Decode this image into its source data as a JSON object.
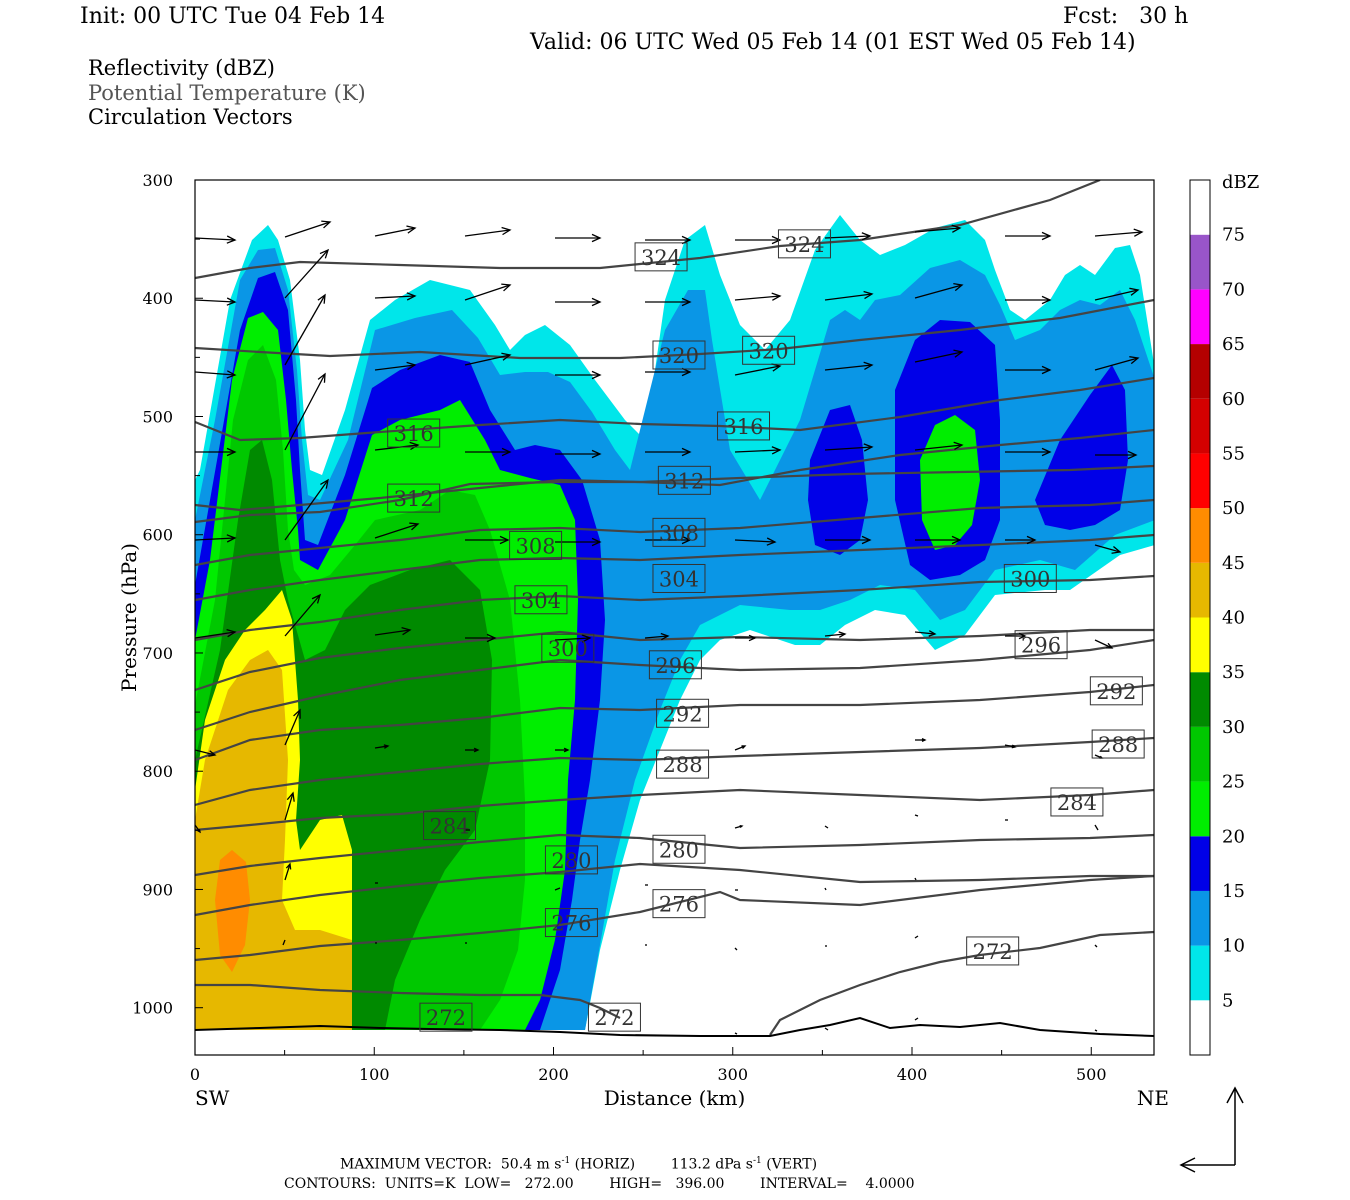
{
  "header": {
    "init": "Init: 00 UTC Tue 04 Feb 14",
    "fcst": "Fcst:   30 h",
    "valid": "Valid: 06 UTC Wed 05 Feb 14 (01 EST Wed 05 Feb 14)"
  },
  "titles": {
    "line1": "Reflectivity (dBZ)",
    "line2": "Potential Temperature (K)",
    "line3": "Circulation Vectors",
    "line2_color": "#555555"
  },
  "footer": {
    "max_vector_label": "MAXIMUM VECTOR:",
    "max_vector_horiz": "50.4 m s",
    "max_vector_horiz_sup": "-1",
    "max_vector_horiz_tail": "(HORIZ)",
    "max_vector_vert": "113.2 dPa s",
    "max_vector_vert_sup": "-1",
    "max_vector_vert_tail": "(VERT)",
    "contours": "CONTOURS:  UNITS=K  LOW=   272.00        HIGH=   396.00        INTERVAL=    4.0000"
  },
  "chart_data": {
    "type": "heatmap",
    "xlabel": "Distance (km)",
    "ylabel": "Pressure (hPa)",
    "xlim": [
      0,
      535
    ],
    "ylim": [
      300,
      1040
    ],
    "x_ticks": [
      0,
      100,
      200,
      300,
      400,
      500
    ],
    "y_ticks": [
      300,
      400,
      500,
      600,
      700,
      800,
      900,
      1000
    ],
    "x_end_labels": {
      "left": "SW",
      "right": "NE"
    },
    "colorbar": {
      "unit": "dBZ",
      "levels": [
        5,
        10,
        15,
        20,
        25,
        30,
        35,
        40,
        45,
        50,
        55,
        60,
        65,
        70,
        75
      ],
      "colors": [
        "#ffffff",
        "#00e6ea",
        "#0a96e6",
        "#0000e8",
        "#00ee00",
        "#00c800",
        "#008a00",
        "#ffff00",
        "#e6b800",
        "#ff8c00",
        "#ff0000",
        "#d40000",
        "#b40000",
        "#ff00ff",
        "#9955c9",
        "#ffffff"
      ]
    },
    "theta_contour_labels": [
      {
        "value": "324",
        "x": 260,
        "p": 365
      },
      {
        "value": "324",
        "x": 340,
        "p": 354
      },
      {
        "value": "320",
        "x": 270,
        "p": 448
      },
      {
        "value": "320",
        "x": 320,
        "p": 444
      },
      {
        "value": "316",
        "x": 122,
        "p": 514
      },
      {
        "value": "316",
        "x": 306,
        "p": 508
      },
      {
        "value": "312",
        "x": 122,
        "p": 569
      },
      {
        "value": "312",
        "x": 273,
        "p": 554
      },
      {
        "value": "308",
        "x": 190,
        "p": 609
      },
      {
        "value": "308",
        "x": 270,
        "p": 598
      },
      {
        "value": "304",
        "x": 193,
        "p": 655
      },
      {
        "value": "304",
        "x": 270,
        "p": 637
      },
      {
        "value": "300",
        "x": 208,
        "p": 696
      },
      {
        "value": "300",
        "x": 466,
        "p": 637
      },
      {
        "value": "296",
        "x": 268,
        "p": 710
      },
      {
        "value": "296",
        "x": 472,
        "p": 693
      },
      {
        "value": "292",
        "x": 272,
        "p": 751
      },
      {
        "value": "292",
        "x": 514,
        "p": 732
      },
      {
        "value": "288",
        "x": 272,
        "p": 794
      },
      {
        "value": "288",
        "x": 515,
        "p": 777
      },
      {
        "value": "284",
        "x": 142,
        "p": 846
      },
      {
        "value": "284",
        "x": 492,
        "p": 826
      },
      {
        "value": "280",
        "x": 210,
        "p": 875
      },
      {
        "value": "280",
        "x": 270,
        "p": 866
      },
      {
        "value": "276",
        "x": 210,
        "p": 928
      },
      {
        "value": "276",
        "x": 270,
        "p": 912
      },
      {
        "value": "272",
        "x": 140,
        "p": 1008
      },
      {
        "value": "272",
        "x": 234,
        "p": 1008
      },
      {
        "value": "272",
        "x": 445,
        "p": 952
      }
    ]
  }
}
